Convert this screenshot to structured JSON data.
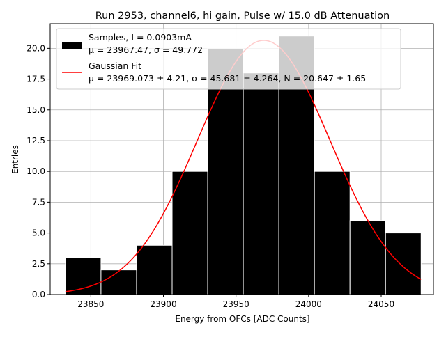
{
  "chart_data": {
    "type": "bar",
    "title": "Run 2953, channel6, hi gain, Pulse w/ 15.0 dB Attenuation",
    "xlabel": "Energy from OFCs [ADC Counts]",
    "ylabel": "Entries",
    "xlim": [
      23822,
      24086
    ],
    "ylim": [
      0.0,
      22.0
    ],
    "xticks": [
      23850,
      23900,
      23950,
      24000,
      24050
    ],
    "xtick_labels": [
      "23850",
      "23900",
      "23950",
      "24000",
      "24050"
    ],
    "yticks": [
      0.0,
      2.5,
      5.0,
      7.5,
      10.0,
      12.5,
      15.0,
      17.5,
      20.0
    ],
    "ytick_labels": [
      "0.0",
      "2.5",
      "5.0",
      "7.5",
      "10.0",
      "12.5",
      "15.0",
      "17.5",
      "20.0"
    ],
    "grid": true,
    "legend_position": "top-left",
    "bins": {
      "edges": [
        23832.5,
        23857.0,
        23881.5,
        23906.0,
        23930.5,
        23955.0,
        23979.5,
        24004.0,
        24028.5,
        24053.0,
        24077.5
      ],
      "counts": [
        3,
        2,
        4,
        10,
        20,
        18,
        21,
        10,
        6,
        5
      ],
      "color": "#000000",
      "edgecolor": "#ffffff"
    },
    "fit": {
      "mu": 23969.073,
      "sigma": 45.681,
      "N": 20.647,
      "x_range": [
        23832.5,
        24077.5
      ],
      "color": "#ff0000"
    },
    "legend": [
      {
        "kind": "patch",
        "color": "#000000",
        "line1": "Samples, I = 0.0903mA",
        "line2": "μ = 23967.47, σ = 49.772"
      },
      {
        "kind": "line",
        "color": "#ff0000",
        "line1": "Gaussian Fit",
        "line2": "μ = 23969.073 ± 4.21, σ = 45.681 ± 4.264, N = 20.647 ± 1.65"
      }
    ]
  }
}
